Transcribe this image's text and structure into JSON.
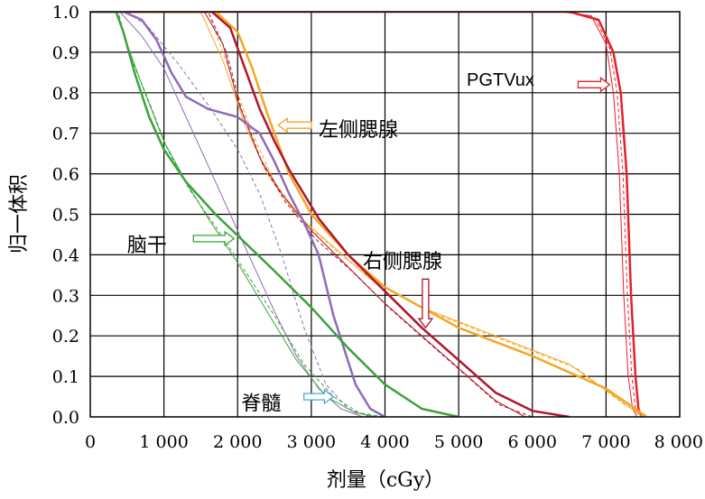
{
  "chart_data": {
    "type": "line",
    "title": "",
    "xlabel": "剂量（cGy）",
    "ylabel": "归一体积",
    "xlim": [
      0,
      8000
    ],
    "ylim": [
      0,
      1.0
    ],
    "grid": true,
    "xticks": [
      {
        "value": 0,
        "label": "0"
      },
      {
        "value": 1000,
        "label": "1 000"
      },
      {
        "value": 2000,
        "label": "2 000"
      },
      {
        "value": 3000,
        "label": "3 000"
      },
      {
        "value": 4000,
        "label": "4 000"
      },
      {
        "value": 5000,
        "label": "5 000"
      },
      {
        "value": 6000,
        "label": "6 000"
      },
      {
        "value": 7000,
        "label": "7 000"
      },
      {
        "value": 8000,
        "label": "8 000"
      }
    ],
    "yticks": [
      {
        "value": 0.0,
        "label": "0.0"
      },
      {
        "value": 0.1,
        "label": "0.1"
      },
      {
        "value": 0.2,
        "label": "0.2"
      },
      {
        "value": 0.3,
        "label": "0.3"
      },
      {
        "value": 0.4,
        "label": "0.4"
      },
      {
        "value": 0.5,
        "label": "0.5"
      },
      {
        "value": 0.6,
        "label": "0.6"
      },
      {
        "value": 0.7,
        "label": "0.7"
      },
      {
        "value": 0.8,
        "label": "0.8"
      },
      {
        "value": 0.9,
        "label": "0.9"
      },
      {
        "value": 1.0,
        "label": "1.0"
      }
    ],
    "series": [
      {
        "color": "#e8202a",
        "width": 2.5,
        "x": [
          0,
          6500,
          6900,
          7100,
          7200,
          7280,
          7340,
          7400,
          7440,
          7480
        ],
        "y": [
          1,
          1,
          0.98,
          0.9,
          0.8,
          0.6,
          0.3,
          0.1,
          0.02,
          0
        ]
      },
      {
        "color": "#e8202a",
        "width": 1,
        "x": [
          0,
          6400,
          6800,
          7000,
          7100,
          7180,
          7240,
          7300,
          7360,
          7420
        ],
        "y": [
          1,
          1,
          0.99,
          0.92,
          0.8,
          0.6,
          0.3,
          0.1,
          0.02,
          0
        ]
      },
      {
        "color": "#e8202a",
        "width": 1,
        "dash": "4,3",
        "x": [
          0,
          6450,
          6850,
          7050,
          7150,
          7230,
          7290,
          7350,
          7400,
          7450
        ],
        "y": [
          1,
          1,
          0.985,
          0.91,
          0.8,
          0.6,
          0.3,
          0.1,
          0.02,
          0
        ]
      },
      {
        "color": "#f5a623",
        "width": 2.5,
        "x": [
          0,
          1700,
          2000,
          2200,
          2400,
          2700,
          3000,
          3500,
          4000,
          5000,
          6000,
          7000,
          7400,
          7550
        ],
        "y": [
          1,
          1,
          0.95,
          0.86,
          0.75,
          0.6,
          0.5,
          0.4,
          0.32,
          0.22,
          0.15,
          0.07,
          0.02,
          0
        ]
      },
      {
        "color": "#f5a623",
        "width": 1,
        "x": [
          0,
          1500,
          1800,
          2100,
          2400,
          2800,
          3300,
          3800,
          4500,
          5500,
          6500,
          7200,
          7500
        ],
        "y": [
          1,
          1,
          0.88,
          0.72,
          0.6,
          0.5,
          0.42,
          0.34,
          0.27,
          0.2,
          0.13,
          0.04,
          0
        ]
      },
      {
        "color": "#f5a623",
        "width": 1,
        "dash": "4,3",
        "x": [
          0,
          1600,
          1900,
          2200,
          2500,
          2900,
          3400,
          3900,
          4600,
          5600,
          6600,
          7250,
          7550
        ],
        "y": [
          1,
          1,
          0.85,
          0.7,
          0.58,
          0.48,
          0.4,
          0.33,
          0.26,
          0.19,
          0.12,
          0.03,
          0
        ]
      },
      {
        "color": "#b0162d",
        "width": 2.5,
        "x": [
          0,
          1650,
          1900,
          2100,
          2300,
          2500,
          2700,
          2900,
          3100,
          3500,
          4000,
          4500,
          5000,
          5500,
          6000,
          6500
        ],
        "y": [
          1,
          1,
          0.96,
          0.86,
          0.76,
          0.68,
          0.61,
          0.55,
          0.49,
          0.4,
          0.31,
          0.22,
          0.14,
          0.06,
          0.015,
          0
        ]
      },
      {
        "color": "#b0162d",
        "width": 1,
        "x": [
          0,
          1550,
          1800,
          2000,
          2300,
          2600,
          3000,
          3500,
          4000,
          4500,
          5000,
          5500,
          5900
        ],
        "y": [
          1,
          1,
          0.92,
          0.78,
          0.64,
          0.55,
          0.46,
          0.37,
          0.28,
          0.2,
          0.12,
          0.04,
          0
        ]
      },
      {
        "color": "#b0162d",
        "width": 1,
        "dash": "4,3",
        "x": [
          0,
          1600,
          1850,
          2050,
          2350,
          2650,
          3050,
          3550,
          4050,
          4550,
          5050,
          5550,
          6000
        ],
        "y": [
          1,
          1,
          0.9,
          0.76,
          0.62,
          0.53,
          0.44,
          0.36,
          0.27,
          0.19,
          0.11,
          0.03,
          0
        ]
      },
      {
        "color": "#8e6bb8",
        "width": 2.5,
        "x": [
          0,
          450,
          700,
          900,
          1100,
          1300,
          1600,
          2000,
          2300,
          2500,
          2700,
          2900,
          3100,
          3300,
          3600,
          3800,
          4000
        ],
        "y": [
          1,
          1,
          0.98,
          0.93,
          0.85,
          0.79,
          0.76,
          0.74,
          0.7,
          0.63,
          0.55,
          0.48,
          0.4,
          0.25,
          0.08,
          0.02,
          0
        ]
      },
      {
        "color": "#8e6bb8",
        "width": 1,
        "x": [
          0,
          400,
          700,
          1000,
          1300,
          1600,
          1900,
          2200,
          2500,
          2800,
          3100,
          3400,
          3700
        ],
        "y": [
          1,
          1,
          0.94,
          0.86,
          0.74,
          0.62,
          0.5,
          0.38,
          0.26,
          0.15,
          0.07,
          0.02,
          0
        ]
      },
      {
        "color": "#8e6bb8",
        "width": 1,
        "dash": "4,3",
        "x": [
          0,
          500,
          800,
          1200,
          1600,
          2000,
          2300,
          2600,
          2900,
          3200,
          3500,
          3800
        ],
        "y": [
          1,
          1,
          0.96,
          0.87,
          0.77,
          0.66,
          0.55,
          0.4,
          0.22,
          0.08,
          0.02,
          0
        ]
      },
      {
        "color": "#3aa33a",
        "width": 2.5,
        "x": [
          0,
          350,
          450,
          600,
          800,
          1000,
          1300,
          1700,
          2100,
          2500,
          3000,
          3500,
          4000,
          4500,
          5000
        ],
        "y": [
          1,
          1,
          0.95,
          0.85,
          0.74,
          0.66,
          0.58,
          0.5,
          0.43,
          0.36,
          0.27,
          0.17,
          0.08,
          0.02,
          0
        ]
      },
      {
        "color": "#3aa33a",
        "width": 1,
        "x": [
          0,
          350,
          500,
          700,
          1000,
          1300,
          1600,
          2000,
          2400,
          2800,
          3200,
          3600,
          3900
        ],
        "y": [
          1,
          1,
          0.92,
          0.82,
          0.68,
          0.58,
          0.49,
          0.38,
          0.26,
          0.14,
          0.05,
          0.01,
          0
        ]
      },
      {
        "color": "#3aa33a",
        "width": 1,
        "dash": "4,3",
        "x": [
          0,
          380,
          520,
          750,
          1050,
          1350,
          1700,
          2100,
          2500,
          2900,
          3300,
          3650,
          4000
        ],
        "y": [
          1,
          1,
          0.9,
          0.8,
          0.66,
          0.56,
          0.47,
          0.36,
          0.25,
          0.13,
          0.05,
          0.01,
          0
        ]
      }
    ],
    "annotations": [
      {
        "text": "PGTVux",
        "text_x": 2620,
        "text_y": 0.835,
        "latin": true,
        "arrow_from": [
          6620,
          0.82
        ],
        "arrow_to": [
          7050,
          0.82
        ],
        "arrow_color": "#e8202a"
      },
      {
        "text": "左侧腮腺",
        "text_x": 3100,
        "text_y": 0.71,
        "arrow_from": [
          3000,
          0.72
        ],
        "arrow_to": [
          2550,
          0.72
        ],
        "arrow_color": "#f5a623"
      },
      {
        "text": "脑干",
        "text_x": 500,
        "text_y": 0.425,
        "arrow_from": [
          1400,
          0.44
        ],
        "arrow_to": [
          1950,
          0.44
        ],
        "arrow_color": "#3aa33a"
      },
      {
        "text": "右侧腮腺",
        "text_x": 3700,
        "text_y": 0.385,
        "arrow_from": [
          4550,
          0.34
        ],
        "arrow_to": [
          4550,
          0.22
        ],
        "arrow_color": "#b0162d"
      },
      {
        "text": "脊髓",
        "text_x": 2050,
        "text_y": 0.035,
        "arrow_from": [
          2900,
          0.05
        ],
        "arrow_to": [
          3300,
          0.05
        ],
        "arrow_color": "#4aa3df"
      }
    ]
  }
}
